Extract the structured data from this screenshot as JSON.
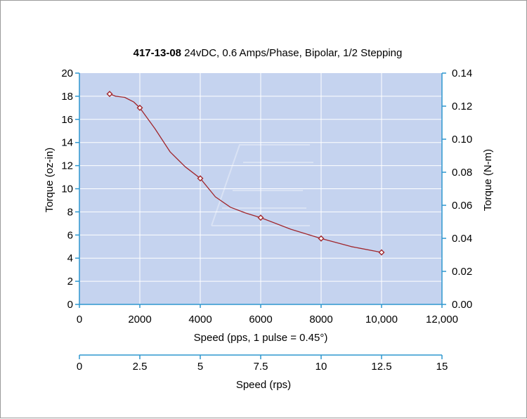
{
  "chart_data": {
    "type": "line",
    "title_bold": "417-13-08",
    "title_rest": " 24vDC, 0.6 Amps/Phase, Bipolar, 1/2 Stepping",
    "xlabel": "Speed (pps, 1 pulse = 0.45°)",
    "ylabel": "Torque (oz-in)",
    "y2label": "Torque (N-m)",
    "x2label": "Speed (rps)",
    "xlim": [
      0,
      12000
    ],
    "ylim": [
      0,
      20
    ],
    "y2lim": [
      0,
      0.14
    ],
    "x2lim": [
      0,
      15
    ],
    "x_ticks": [
      0,
      2000,
      4000,
      6000,
      8000,
      10000,
      12000
    ],
    "x_tick_labels": [
      "0",
      "2000",
      "4000",
      "6000",
      "8000",
      "10,000",
      "12,000"
    ],
    "y_ticks": [
      0,
      2,
      4,
      6,
      8,
      10,
      12,
      14,
      16,
      18,
      20
    ],
    "y_tick_labels": [
      "0",
      "2",
      "4",
      "6",
      "8",
      "10",
      "12",
      "14",
      "16",
      "18",
      "20"
    ],
    "y2_ticks": [
      0,
      0.02,
      0.04,
      0.06,
      0.08,
      0.1,
      0.12,
      0.14
    ],
    "y2_tick_labels": [
      "0.00",
      "0.02",
      "0.04",
      "0.06",
      "0.08",
      "0.10",
      "0.12",
      "0.14"
    ],
    "x2_ticks": [
      0,
      2.5,
      5,
      7.5,
      10,
      12.5,
      15
    ],
    "x2_tick_labels": [
      "0",
      "2.5",
      "5",
      "7.5",
      "10",
      "12.5",
      "15"
    ],
    "grid": true,
    "series": [
      {
        "x": [
          1000,
          2000,
          4000,
          6000,
          8000,
          10000
        ],
        "y": [
          18.2,
          17.0,
          10.9,
          7.5,
          5.7,
          4.5
        ],
        "curve_x": [
          1000,
          1200,
          1500,
          1800,
          2000,
          2500,
          3000,
          3500,
          4000,
          4500,
          5000,
          5500,
          6000,
          7000,
          8000,
          9000,
          10000
        ],
        "curve_y": [
          18.2,
          18.0,
          17.9,
          17.5,
          17.0,
          15.2,
          13.2,
          11.9,
          10.9,
          9.3,
          8.4,
          7.9,
          7.5,
          6.5,
          5.7,
          5.0,
          4.5
        ],
        "color": "#a0262c"
      }
    ],
    "plot_bg": "#c5d3ef",
    "grid_color": "#ffffff",
    "axis_color": "#2e97cf"
  }
}
